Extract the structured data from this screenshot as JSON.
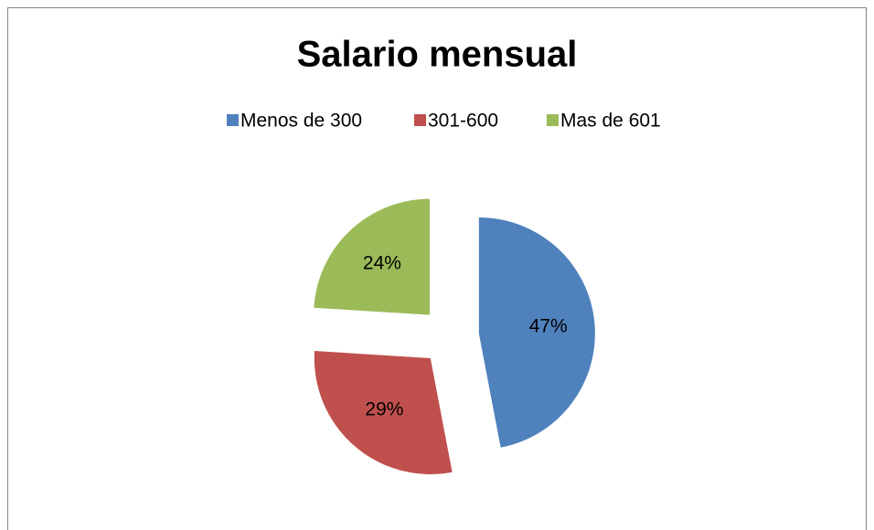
{
  "chart_data": {
    "type": "pie",
    "title": "Salario mensual",
    "categories": [
      "Menos de 300",
      "301-600",
      "Mas de 601"
    ],
    "values": [
      47,
      29,
      24
    ],
    "value_labels": [
      "47%",
      "29%",
      "24%"
    ],
    "colors": [
      "#4f81bd",
      "#c0504d",
      "#9bbb59"
    ],
    "legend": "top",
    "exploded": true
  }
}
